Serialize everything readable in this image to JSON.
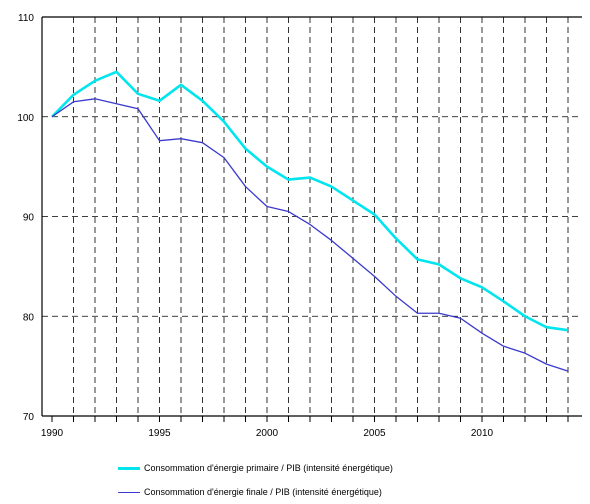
{
  "chart_data": {
    "type": "line",
    "title": "",
    "xlabel": "",
    "ylabel": "",
    "xlim": [
      1990,
      2014
    ],
    "ylim": [
      70,
      110
    ],
    "grid": true,
    "legend_position": "bottom",
    "x_ticks": [
      1990,
      1995,
      2000,
      2005,
      2010
    ],
    "y_ticks": [
      70,
      80,
      90,
      100,
      110
    ],
    "x": [
      1990,
      1991,
      1992,
      1993,
      1994,
      1995,
      1996,
      1997,
      1998,
      1999,
      2000,
      2001,
      2002,
      2003,
      2004,
      2005,
      2006,
      2007,
      2008,
      2009,
      2010,
      2011,
      2012,
      2013,
      2014
    ],
    "series": [
      {
        "name": "Consommation d'énergie primaire / PIB (intensité énergétique)",
        "color": "#00e5ee",
        "values": [
          100,
          102.2,
          103.6,
          104.5,
          102.3,
          101.6,
          103.2,
          101.6,
          99.5,
          96.8,
          95.0,
          93.7,
          93.9,
          93.0,
          91.6,
          90.2,
          87.8,
          85.7,
          85.2,
          83.8,
          82.9,
          81.5,
          80.0,
          78.9,
          78.6
        ]
      },
      {
        "name": "Consommation d'énergie finale / PIB (intensité énergétique)",
        "color": "#3a3acc",
        "values": [
          100,
          101.5,
          101.8,
          101.3,
          100.8,
          97.6,
          97.8,
          97.4,
          95.9,
          93.0,
          91.0,
          90.5,
          89.2,
          87.6,
          85.8,
          84.0,
          82.0,
          80.3,
          80.3,
          79.8,
          78.3,
          77.0,
          76.3,
          75.2,
          74.5
        ]
      }
    ]
  }
}
